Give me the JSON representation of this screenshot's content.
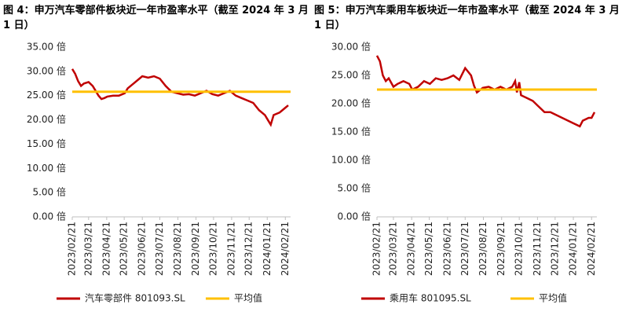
{
  "chart_data": [
    {
      "type": "line",
      "title": "图 4：申万汽车零部件板块近一年市盈率水平（截至 2024 年 3 月 1 日）",
      "xlim": [
        0,
        374
      ],
      "xticks": [
        {
          "value": 0,
          "label": "2023/02/21"
        },
        {
          "value": 28,
          "label": "2023/03/21"
        },
        {
          "value": 59,
          "label": "2023/04/21"
        },
        {
          "value": 89,
          "label": "2023/05/21"
        },
        {
          "value": 120,
          "label": "2023/06/21"
        },
        {
          "value": 150,
          "label": "2023/07/21"
        },
        {
          "value": 181,
          "label": "2023/08/21"
        },
        {
          "value": 212,
          "label": "2023/09/21"
        },
        {
          "value": 242,
          "label": "2023/10/21"
        },
        {
          "value": 273,
          "label": "2023/11/21"
        },
        {
          "value": 303,
          "label": "2023/12/21"
        },
        {
          "value": 334,
          "label": "2024/01/21"
        },
        {
          "value": 365,
          "label": "2024/02/21"
        }
      ],
      "ylim": [
        0,
        35
      ],
      "yticks": [
        {
          "value": 0,
          "label": "0.00 倍"
        },
        {
          "value": 5,
          "label": "5.00 倍"
        },
        {
          "value": 10,
          "label": "10.00 倍"
        },
        {
          "value": 15,
          "label": "15.00 倍"
        },
        {
          "value": 20,
          "label": "20.00 倍"
        },
        {
          "value": 25,
          "label": "25.00 倍"
        },
        {
          "value": 30,
          "label": "30.00 倍"
        },
        {
          "value": 35,
          "label": "35.00 倍"
        }
      ],
      "series": [
        {
          "name": "汽车零部件 801093.SL",
          "color": "#c00000",
          "x": [
            0,
            5,
            10,
            15,
            20,
            28,
            35,
            40,
            45,
            50,
            55,
            60,
            70,
            80,
            90,
            95,
            105,
            115,
            120,
            130,
            140,
            150,
            160,
            170,
            180,
            190,
            200,
            210,
            220,
            230,
            240,
            250,
            260,
            270,
            280,
            290,
            300,
            310,
            320,
            330,
            335,
            340,
            345,
            355,
            360,
            365,
            370
          ],
          "values": [
            30.5,
            29.5,
            28,
            27,
            27.5,
            27.8,
            27,
            26,
            25,
            24.3,
            24.5,
            24.8,
            25,
            25,
            25.5,
            26.5,
            27.5,
            28.5,
            29,
            28.7,
            29,
            28.5,
            27,
            25.8,
            25.5,
            25.2,
            25.3,
            25,
            25.5,
            26,
            25.3,
            25,
            25.5,
            26,
            25,
            24.5,
            24,
            23.5,
            22,
            21,
            20,
            19,
            21,
            21.5,
            22,
            22.5,
            23
          ]
        },
        {
          "name": "平均值",
          "color": "#ffc000",
          "x": [
            0,
            374
          ],
          "values": [
            25.8,
            25.8
          ]
        }
      ]
    },
    {
      "type": "line",
      "title": "图 5：申万汽车乘用车板块近一年市盈率水平（截至 2024 年 3 月 1 日）",
      "xlim": [
        0,
        374
      ],
      "xticks": [
        {
          "value": 0,
          "label": "2023/02/21"
        },
        {
          "value": 28,
          "label": "2023/03/21"
        },
        {
          "value": 59,
          "label": "2023/04/21"
        },
        {
          "value": 89,
          "label": "2023/05/21"
        },
        {
          "value": 120,
          "label": "2023/06/21"
        },
        {
          "value": 150,
          "label": "2023/07/21"
        },
        {
          "value": 181,
          "label": "2023/08/21"
        },
        {
          "value": 212,
          "label": "2023/09/21"
        },
        {
          "value": 242,
          "label": "2023/10/21"
        },
        {
          "value": 273,
          "label": "2023/11/21"
        },
        {
          "value": 303,
          "label": "2023/12/21"
        },
        {
          "value": 334,
          "label": "2024/01/21"
        },
        {
          "value": 365,
          "label": "2024/02/21"
        }
      ],
      "ylim": [
        0,
        30
      ],
      "yticks": [
        {
          "value": 0,
          "label": "0.00 倍"
        },
        {
          "value": 5,
          "label": "5.00 倍"
        },
        {
          "value": 10,
          "label": "10.00 倍"
        },
        {
          "value": 15,
          "label": "15.00 倍"
        },
        {
          "value": 20,
          "label": "20.00 倍"
        },
        {
          "value": 25,
          "label": "25.00 倍"
        },
        {
          "value": 30,
          "label": "30.00 倍"
        }
      ],
      "series": [
        {
          "name": "乘用车 801095.SL",
          "color": "#c00000",
          "x": [
            0,
            5,
            10,
            15,
            20,
            28,
            35,
            45,
            55,
            60,
            70,
            80,
            90,
            100,
            110,
            120,
            130,
            140,
            150,
            160,
            165,
            170,
            180,
            190,
            200,
            210,
            220,
            230,
            235,
            238,
            242,
            245,
            255,
            265,
            275,
            285,
            295,
            305,
            315,
            325,
            335,
            345,
            350,
            360,
            365,
            370
          ],
          "values": [
            28.5,
            27.5,
            25,
            24,
            24.5,
            23,
            23.5,
            24,
            23.5,
            22.5,
            23,
            24,
            23.5,
            24.5,
            24.2,
            24.5,
            25,
            24.2,
            26.3,
            25,
            23.2,
            22,
            22.8,
            23,
            22.5,
            23,
            22.5,
            23,
            24,
            22,
            23.8,
            21.5,
            21,
            20.5,
            19.5,
            18.5,
            18.5,
            18,
            17.5,
            17,
            16.5,
            16,
            17,
            17.5,
            17.5,
            18.5
          ]
        },
        {
          "name": "平均值",
          "color": "#ffc000",
          "x": [
            0,
            374
          ],
          "values": [
            22.5,
            22.5
          ]
        }
      ]
    }
  ]
}
